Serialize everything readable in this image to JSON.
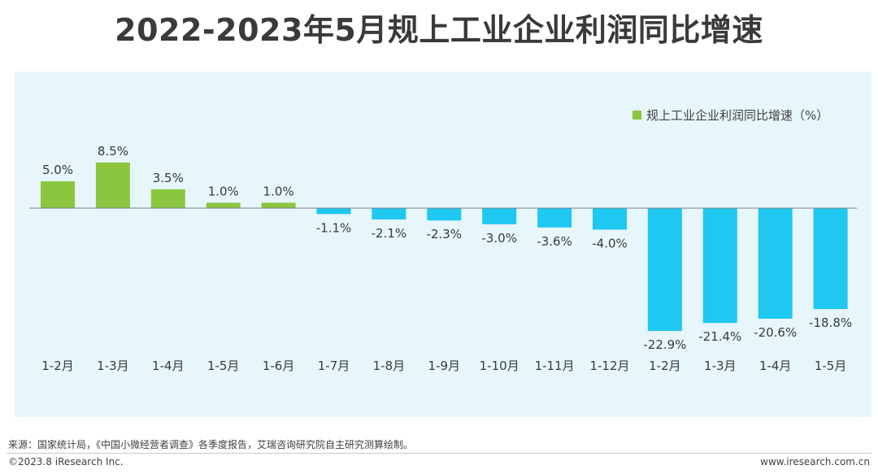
{
  "title": "2022-2023年5月规上工业企业利润同比增速",
  "legend": {
    "label": "规上工业企业利润同比增速（%）"
  },
  "colors": {
    "positive": "#8cc63f",
    "negative": "#1ec8f0",
    "panel": "#e6f6fb",
    "axis": "#7f7f7f",
    "text": "#3a3a3a"
  },
  "chart_data": {
    "type": "bar",
    "title": "2022-2023年5月规上工业企业利润同比增速",
    "xlabel": "",
    "ylabel": "",
    "categories": [
      "1-2月",
      "1-3月",
      "1-4月",
      "1-5月",
      "1-6月",
      "1-7月",
      "1-8月",
      "1-9月",
      "1-10月",
      "1-11月",
      "1-12月",
      "1-2月",
      "1-3月",
      "1-4月",
      "1-5月"
    ],
    "values": [
      5.0,
      8.5,
      3.5,
      1.0,
      1.0,
      -1.1,
      -2.1,
      -2.3,
      -3.0,
      -3.6,
      -4.0,
      -22.9,
      -21.4,
      -20.6,
      -18.8
    ],
    "labels": [
      "5.0%",
      "8.5%",
      "3.5%",
      "1.0%",
      "1.0%",
      "-1.1%",
      "-2.1%",
      "-2.3%",
      "-3.0%",
      "-3.6%",
      "-4.0%",
      "-22.9%",
      "-21.4%",
      "-20.6%",
      "-18.8%"
    ],
    "series": [
      {
        "name": "规上工业企业利润同比增速（%）"
      }
    ],
    "legend_position": "top-right",
    "grid": false
  },
  "footer": {
    "source": "来源：国家统计局，《中国小微经营者调查》各季度报告，艾瑞咨询研究院自主研究测算绘制。",
    "copyright": "©2023.8 iResearch Inc.",
    "site": "www.iresearch.com.cn"
  }
}
